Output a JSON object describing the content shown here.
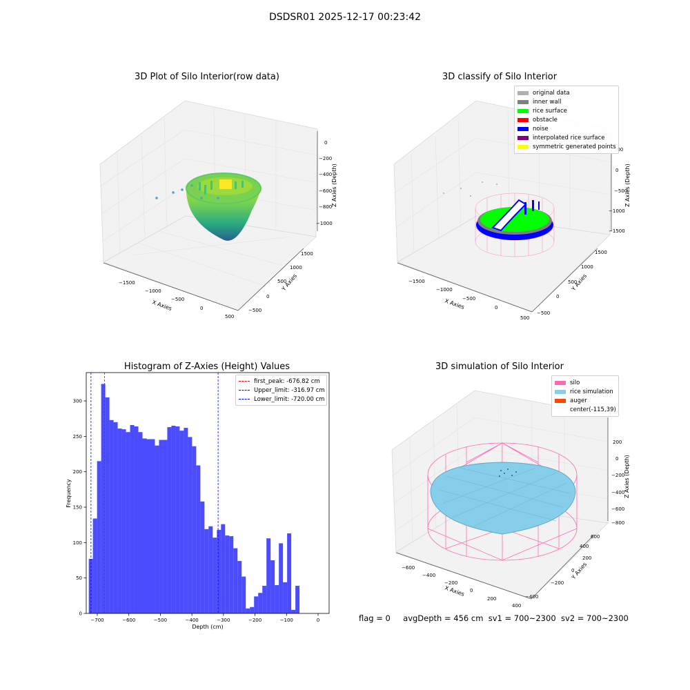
{
  "figure": {
    "suptitle": "DSDSR01 2025-12-17 00:23:42",
    "footer": {
      "flag": "flag = 0",
      "avg": "avgDepth = 456 cm",
      "sv1": "sv1 = 700~2300",
      "sv2": "sv2 = 700~2300"
    }
  },
  "chart_data": [
    {
      "type": "scatter",
      "projection": "3d",
      "title": "3D Plot of Silo Interior(row data)",
      "xlabel": "X Axies",
      "ylabel": "Y Axies",
      "zlabel": "Z Axies (Depth)",
      "xticks": [
        "−1500",
        "−1000",
        "−500",
        "0",
        "500"
      ],
      "yticks": [
        "−500",
        "0",
        "500",
        "1000",
        "1500"
      ],
      "zticks": [
        "0",
        "−200",
        "−400",
        "−600",
        "−800",
        "−1000"
      ],
      "colormap": "viridis"
    },
    {
      "type": "scatter",
      "projection": "3d",
      "title": "3D classify of Silo Interior",
      "xlabel": "X Axies",
      "ylabel": "Y Axies",
      "zlabel": "Z Axies (Depth)",
      "xticks": [
        "−1500",
        "−1000",
        "−500",
        "0",
        "500"
      ],
      "yticks": [
        "−500",
        "0",
        "500",
        "1000",
        "1500"
      ],
      "zticks": [
        "500",
        "0",
        "−500",
        "−1000",
        "−1500"
      ],
      "legend_position": "upper right",
      "legend": [
        {
          "label": "original data",
          "color": "#b0b0b0"
        },
        {
          "label": "inner wall",
          "color": "#808080"
        },
        {
          "label": "rice surface",
          "color": "#00ff00"
        },
        {
          "label": "obstacle",
          "color": "#ff0000"
        },
        {
          "label": "noise",
          "color": "#0000ff"
        },
        {
          "label": "interpolated rice surface",
          "color": "#800080"
        },
        {
          "label": "symmetric generated points",
          "color": "#ffff00"
        }
      ]
    },
    {
      "type": "bar",
      "title": "Histogram of Z-Axies (Height) Values",
      "xlabel": "Depth (cm)",
      "ylabel": "Frequency",
      "xlim": [
        -735,
        35
      ],
      "ylim": [
        0,
        340
      ],
      "xticks": [
        -700,
        -600,
        -500,
        -400,
        -300,
        -200,
        -100,
        0
      ],
      "xtick_labels": [
        "−700",
        "−600",
        "−500",
        "−400",
        "−300",
        "−200",
        "−100",
        "0"
      ],
      "yticks": [
        0,
        50,
        100,
        150,
        200,
        250,
        300
      ],
      "bin_start": -727,
      "bin_width": 13.1,
      "values": [
        77,
        134,
        215,
        324,
        305,
        273,
        270,
        261,
        260,
        256,
        266,
        264,
        256,
        247,
        246,
        246,
        237,
        245,
        245,
        263,
        265,
        264,
        258,
        262,
        249,
        236,
        209,
        158,
        119,
        123,
        107,
        118,
        126,
        110,
        109,
        92,
        74,
        52,
        7,
        9,
        24,
        29,
        39,
        106,
        75,
        40,
        99,
        44,
        113,
        5,
        39
      ],
      "bar_color": "#0000ff",
      "bar_alpha": 0.7,
      "vlines": [
        {
          "label": "first_peak: -676.82 cm",
          "x": -676.82,
          "color": "#ff0000"
        },
        {
          "label": "Upper_limit: -316.97 cm",
          "x": -316.97,
          "color": "#0000ff"
        },
        {
          "label": "Lower_limit: -720.00 cm",
          "x": -720.0,
          "color": "#0000ff"
        }
      ],
      "legend_position": "upper right"
    },
    {
      "type": "surface",
      "projection": "3d",
      "title": "3D simulation of Silo Interior",
      "xlabel": "X Axies",
      "ylabel": "Y Axies",
      "zlabel": "Z Axies (Depth)",
      "xticks": [
        "−600",
        "−400",
        "−200",
        "0",
        "200",
        "400"
      ],
      "yticks": [
        "−400",
        "−200",
        "0",
        "200",
        "400",
        "600"
      ],
      "zticks": [
        "200",
        "0",
        "−200",
        "−400",
        "−600",
        "−800"
      ],
      "legend_position": "upper right",
      "legend": [
        {
          "label": "silo",
          "color": "#ff69b4"
        },
        {
          "label": "rice simulation",
          "color": "#87ceeb"
        },
        {
          "label": "auger",
          "color": "#ff4500"
        },
        {
          "label": "center(-115,39)",
          "color": "none"
        }
      ]
    }
  ]
}
